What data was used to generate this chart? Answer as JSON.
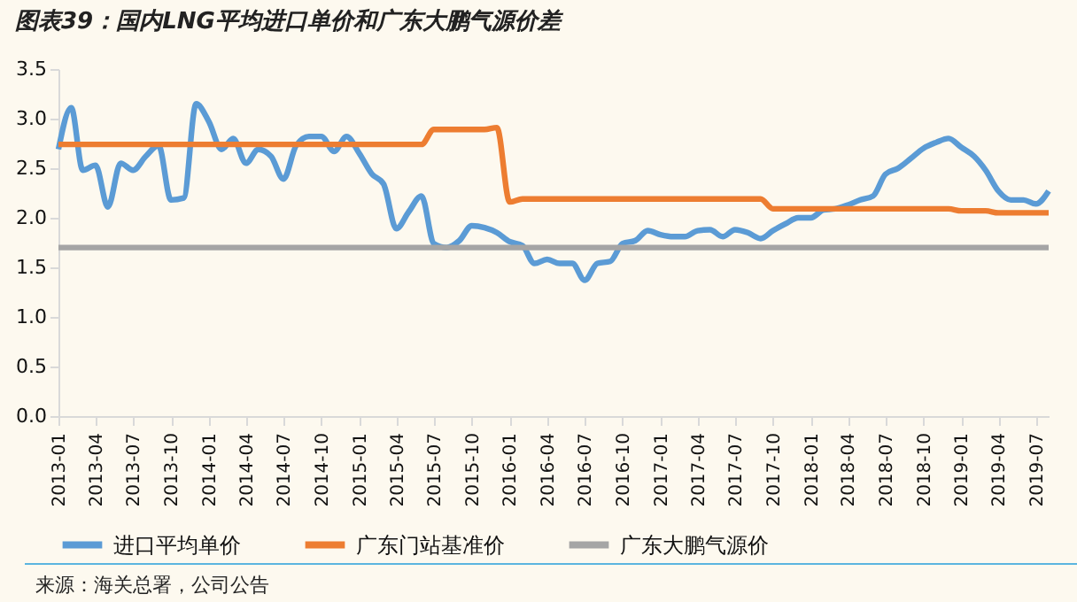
{
  "chart_data": {
    "type": "line",
    "title": "图表39：国内LNG平均进口单价和广东大鹏气源价差",
    "x": [
      "2013-01",
      "2013-02",
      "2013-03",
      "2013-04",
      "2013-05",
      "2013-06",
      "2013-07",
      "2013-08",
      "2013-09",
      "2013-10",
      "2013-11",
      "2013-12",
      "2014-01",
      "2014-02",
      "2014-03",
      "2014-04",
      "2014-05",
      "2014-06",
      "2014-07",
      "2014-08",
      "2014-09",
      "2014-10",
      "2014-11",
      "2014-12",
      "2015-01",
      "2015-02",
      "2015-03",
      "2015-04",
      "2015-05",
      "2015-06",
      "2015-07",
      "2015-08",
      "2015-09",
      "2015-10",
      "2015-11",
      "2015-12",
      "2016-01",
      "2016-02",
      "2016-03",
      "2016-04",
      "2016-05",
      "2016-06",
      "2016-07",
      "2016-08",
      "2016-09",
      "2016-10",
      "2016-11",
      "2016-12",
      "2017-01",
      "2017-02",
      "2017-03",
      "2017-04",
      "2017-05",
      "2017-06",
      "2017-07",
      "2017-08",
      "2017-09",
      "2017-10",
      "2017-11",
      "2017-12",
      "2018-01",
      "2018-02",
      "2018-03",
      "2018-04",
      "2018-05",
      "2018-06",
      "2018-07",
      "2018-08",
      "2018-09",
      "2018-10",
      "2018-11",
      "2018-12",
      "2019-01",
      "2019-02",
      "2019-03",
      "2019-04",
      "2019-05",
      "2019-06",
      "2019-07",
      "2019-08"
    ],
    "series": [
      {
        "name": "进口平均单价",
        "color": "#5b9bd5",
        "values": [
          2.69,
          3.11,
          2.48,
          2.53,
          2.11,
          2.55,
          2.48,
          2.62,
          2.73,
          2.18,
          2.2,
          3.15,
          2.97,
          2.69,
          2.8,
          2.55,
          2.69,
          2.62,
          2.39,
          2.73,
          2.82,
          2.82,
          2.67,
          2.82,
          2.65,
          2.44,
          2.34,
          1.89,
          2.06,
          2.22,
          1.74,
          1.7,
          1.77,
          1.92,
          1.9,
          1.85,
          1.76,
          1.72,
          1.54,
          1.58,
          1.54,
          1.54,
          1.37,
          1.54,
          1.56,
          1.74,
          1.77,
          1.87,
          1.83,
          1.81,
          1.81,
          1.87,
          1.88,
          1.81,
          1.88,
          1.85,
          1.79,
          1.87,
          1.94,
          2.0,
          2.0,
          2.08,
          2.09,
          2.13,
          2.18,
          2.22,
          2.44,
          2.5,
          2.6,
          2.7,
          2.76,
          2.8,
          2.71,
          2.62,
          2.48,
          2.27,
          2.18,
          2.18,
          2.14,
          2.27
        ]
      },
      {
        "name": "广东门站基准价",
        "color": "#ed7d31",
        "values": [
          2.74,
          2.74,
          2.74,
          2.74,
          2.74,
          2.74,
          2.74,
          2.74,
          2.74,
          2.74,
          2.74,
          2.74,
          2.74,
          2.74,
          2.74,
          2.74,
          2.74,
          2.74,
          2.74,
          2.74,
          2.74,
          2.74,
          2.74,
          2.74,
          2.74,
          2.74,
          2.74,
          2.74,
          2.74,
          2.74,
          2.89,
          2.89,
          2.89,
          2.89,
          2.89,
          2.91,
          2.16,
          2.19,
          2.19,
          2.19,
          2.19,
          2.19,
          2.19,
          2.19,
          2.19,
          2.19,
          2.19,
          2.19,
          2.19,
          2.19,
          2.19,
          2.19,
          2.19,
          2.19,
          2.19,
          2.19,
          2.19,
          2.09,
          2.09,
          2.09,
          2.09,
          2.09,
          2.09,
          2.09,
          2.09,
          2.09,
          2.09,
          2.09,
          2.09,
          2.09,
          2.09,
          2.09,
          2.07,
          2.07,
          2.07,
          2.05,
          2.05,
          2.05,
          2.05,
          2.05
        ]
      },
      {
        "name": "广东大鹏气源价",
        "color": "#a5a5a5",
        "values": [
          1.7,
          1.7,
          1.7,
          1.7,
          1.7,
          1.7,
          1.7,
          1.7,
          1.7,
          1.7,
          1.7,
          1.7,
          1.7,
          1.7,
          1.7,
          1.7,
          1.7,
          1.7,
          1.7,
          1.7,
          1.7,
          1.7,
          1.7,
          1.7,
          1.7,
          1.7,
          1.7,
          1.7,
          1.7,
          1.7,
          1.7,
          1.7,
          1.7,
          1.7,
          1.7,
          1.7,
          1.7,
          1.7,
          1.7,
          1.7,
          1.7,
          1.7,
          1.7,
          1.7,
          1.7,
          1.7,
          1.7,
          1.7,
          1.7,
          1.7,
          1.7,
          1.7,
          1.7,
          1.7,
          1.7,
          1.7,
          1.7,
          1.7,
          1.7,
          1.7,
          1.7,
          1.7,
          1.7,
          1.7,
          1.7,
          1.7,
          1.7,
          1.7,
          1.7,
          1.7,
          1.7,
          1.7,
          1.7,
          1.7,
          1.7,
          1.7,
          1.7,
          1.7,
          1.7,
          1.7
        ]
      }
    ],
    "xlim": [
      "2013-01",
      "2019-08"
    ],
    "xticks": [
      "2013-01",
      "2013-04",
      "2013-07",
      "2013-10",
      "2014-01",
      "2014-04",
      "2014-07",
      "2014-10",
      "2015-01",
      "2015-04",
      "2015-07",
      "2015-10",
      "2016-01",
      "2016-04",
      "2016-07",
      "2016-10",
      "2017-01",
      "2017-04",
      "2017-07",
      "2017-10",
      "2018-01",
      "2018-04",
      "2018-07",
      "2018-10",
      "2019-01",
      "2019-04",
      "2019-07"
    ],
    "ylim": [
      0,
      3.5
    ],
    "yticks": [
      {
        "value": 0,
        "label": "0.0"
      },
      {
        "value": 0.5,
        "label": "0.5"
      },
      {
        "value": 1,
        "label": "1.0"
      },
      {
        "value": 1.5,
        "label": "1.5"
      },
      {
        "value": 2,
        "label": "2.0"
      },
      {
        "value": 2.5,
        "label": "2.5"
      },
      {
        "value": 3,
        "label": "3.0"
      },
      {
        "value": 3.5,
        "label": "3.5"
      }
    ],
    "grid": false,
    "legend": "bottom",
    "marker": "none",
    "line_style": "solid",
    "annotations": [
      "来源：海关总署，公司公告"
    ]
  }
}
